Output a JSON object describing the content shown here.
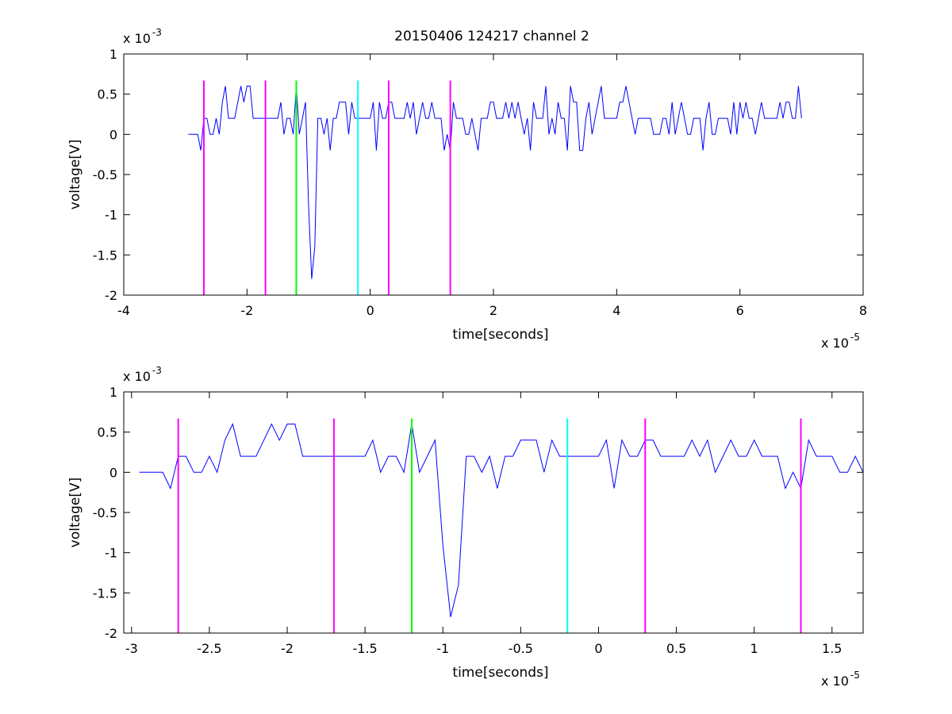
{
  "title": "20150406 124217 channel 2",
  "chart_data": [
    {
      "type": "line",
      "xlabel": "time[seconds]",
      "ylabel": "voltage[V]",
      "x_multiplier_label": "x 10",
      "x_multiplier_exp": "-5",
      "y_multiplier_label": "x 10",
      "y_multiplier_exp": "-3",
      "xlim": [
        -4,
        8
      ],
      "ylim": [
        -2,
        1
      ],
      "xticks": [
        -4,
        -2,
        0,
        2,
        4,
        6,
        8
      ],
      "xtick_labels": [
        "-4",
        "-2",
        "0",
        "2",
        "4",
        "6",
        "8"
      ],
      "yticks": [
        -2,
        -1.5,
        -1,
        -0.5,
        0,
        0.5,
        1
      ],
      "ytick_labels": [
        "-2",
        "-1.5",
        "-1",
        "-0.5",
        "0",
        "0.5",
        "1"
      ],
      "signal_range": [
        -2.95,
        7.0
      ],
      "signal_color": "#0000ff",
      "spike": {
        "x": -0.97,
        "y": -1.8
      },
      "markers": [
        {
          "x": -2.7,
          "color": "#ff00ff"
        },
        {
          "x": -1.7,
          "color": "#ff00ff"
        },
        {
          "x": -1.2,
          "color": "#00ff00"
        },
        {
          "x": -0.2,
          "color": "#00ffff"
        },
        {
          "x": 0.3,
          "color": "#ff00ff"
        },
        {
          "x": 1.3,
          "color": "#ff00ff"
        }
      ],
      "marker_range": [
        -2,
        0.67
      ]
    },
    {
      "type": "line",
      "xlabel": "time[seconds]",
      "ylabel": "voltage[V]",
      "x_multiplier_label": "x 10",
      "x_multiplier_exp": "-5",
      "y_multiplier_label": "x 10",
      "y_multiplier_exp": "-3",
      "xlim": [
        -3.05,
        1.7
      ],
      "ylim": [
        -2,
        1
      ],
      "xticks": [
        -3,
        -2.5,
        -2,
        -1.5,
        -1,
        -0.5,
        0,
        0.5,
        1,
        1.5
      ],
      "xtick_labels": [
        "-3",
        "-2.5",
        "-2",
        "-1.5",
        "-1",
        "-0.5",
        "0",
        "0.5",
        "1",
        "1.5"
      ],
      "yticks": [
        -2,
        -1.5,
        -1,
        -0.5,
        0,
        0.5,
        1
      ],
      "ytick_labels": [
        "-2",
        "-1.5",
        "-1",
        "-0.5",
        "0",
        "0.5",
        "1"
      ],
      "signal_range": [
        -2.95,
        1.7
      ],
      "signal_color": "#0000ff",
      "spike": {
        "x": -0.97,
        "y": -1.8
      },
      "markers": [
        {
          "x": -2.7,
          "color": "#ff00ff"
        },
        {
          "x": -1.7,
          "color": "#ff00ff"
        },
        {
          "x": -1.2,
          "color": "#00ff00"
        },
        {
          "x": -0.2,
          "color": "#00ffff"
        },
        {
          "x": 0.3,
          "color": "#ff00ff"
        },
        {
          "x": 1.3,
          "color": "#ff00ff"
        }
      ],
      "marker_range": [
        -2,
        0.67
      ]
    }
  ]
}
